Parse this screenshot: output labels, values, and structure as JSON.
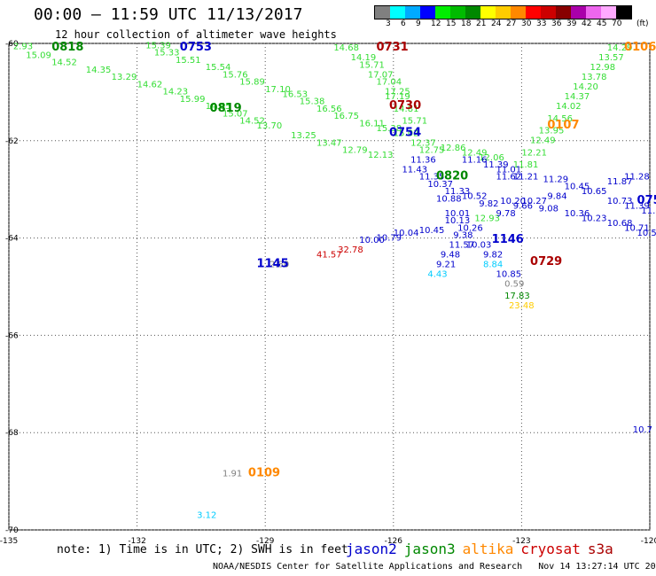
{
  "header": {
    "title": "00:00 — 11:59 UTC 11/13/2017",
    "subtitle": "12 hour collection of altimeter wave heights"
  },
  "colorbar": {
    "unit": "(ft)",
    "swatches": [
      {
        "color": "#808080",
        "label": "3"
      },
      {
        "color": "#00ffff",
        "label": "6"
      },
      {
        "color": "#00aaff",
        "label": "9"
      },
      {
        "color": "#0000ff",
        "label": "12"
      },
      {
        "color": "#00ee00",
        "label": "15"
      },
      {
        "color": "#00bb00",
        "label": "18"
      },
      {
        "color": "#008800",
        "label": "21"
      },
      {
        "color": "#ffff00",
        "label": "24"
      },
      {
        "color": "#ffcc00",
        "label": "27"
      },
      {
        "color": "#ff8800",
        "label": "30"
      },
      {
        "color": "#ff0000",
        "label": "33"
      },
      {
        "color": "#cc0000",
        "label": "36"
      },
      {
        "color": "#880000",
        "label": "39"
      },
      {
        "color": "#aa00aa",
        "label": "42"
      },
      {
        "color": "#ee66ee",
        "label": "45"
      },
      {
        "color": "#ffaaff",
        "label": "70"
      },
      {
        "color": "#000000",
        "label": ""
      }
    ]
  },
  "map": {
    "lon_min": -135,
    "lon_max": -120,
    "lat_min": -70,
    "lat_max": -60,
    "lon_ticks": [
      {
        "v": -135,
        "label": "-135"
      },
      {
        "v": -132,
        "label": "-132"
      },
      {
        "v": -129,
        "label": "-129"
      },
      {
        "v": -126,
        "label": "-126"
      },
      {
        "v": -123,
        "label": "-123"
      },
      {
        "v": -120,
        "label": "-120"
      }
    ],
    "lat_ticks": [
      {
        "v": -60,
        "label": "-60"
      },
      {
        "v": -62,
        "label": "-62"
      },
      {
        "v": -64,
        "label": "-64"
      },
      {
        "v": -66,
        "label": "-66"
      },
      {
        "v": -68,
        "label": "-68"
      },
      {
        "v": -70,
        "label": "-70"
      }
    ],
    "colors": {
      "jason2": "#0000cc",
      "jason3": "#008800",
      "altika": "#ff8800",
      "cryosat": "#cc0000",
      "s3a": "#aa0000",
      "green_light": "#33dd33",
      "gray": "#808080",
      "cyan": "#00ccff",
      "yellow": "#ffcc00"
    },
    "time_labels": [
      {
        "lon": -134.0,
        "lat": -60.15,
        "text": "0818",
        "sat": "jason3"
      },
      {
        "lon": -131.0,
        "lat": -60.15,
        "text": "0753",
        "sat": "jason2"
      },
      {
        "lon": -126.4,
        "lat": -60.15,
        "text": "0731",
        "sat": "s3a"
      },
      {
        "lon": -120.6,
        "lat": -60.15,
        "text": "0106",
        "sat": "altika"
      },
      {
        "lon": -126.1,
        "lat": -61.35,
        "text": "0730",
        "sat": "s3a"
      },
      {
        "lon": -130.3,
        "lat": -61.4,
        "text": "0819",
        "sat": "jason3"
      },
      {
        "lon": -126.1,
        "lat": -61.9,
        "text": "0754",
        "sat": "jason2"
      },
      {
        "lon": -122.4,
        "lat": -61.75,
        "text": "0107",
        "sat": "altika"
      },
      {
        "lon": -125.0,
        "lat": -62.8,
        "text": "0820",
        "sat": "jason3"
      },
      {
        "lon": -120.3,
        "lat": -63.3,
        "text": "075",
        "sat": "jason2"
      },
      {
        "lon": -123.7,
        "lat": -64.1,
        "text": "1146",
        "sat": "jason2"
      },
      {
        "lon": -129.2,
        "lat": -64.6,
        "text": "1145",
        "sat": "jason2"
      },
      {
        "lon": -122.8,
        "lat": -64.55,
        "text": "0729",
        "sat": "s3a"
      },
      {
        "lon": -129.4,
        "lat": -68.9,
        "text": "0109",
        "sat": "altika"
      }
    ],
    "swh_labels": [
      {
        "lon": -134.9,
        "lat": -60.12,
        "text": "2.93",
        "c": "green_light"
      },
      {
        "lon": -134.6,
        "lat": -60.3,
        "text": "15.09",
        "c": "green_light"
      },
      {
        "lon": -134.0,
        "lat": -60.45,
        "text": "14.52",
        "c": "green_light"
      },
      {
        "lon": -133.2,
        "lat": -60.6,
        "text": "14.35",
        "c": "green_light"
      },
      {
        "lon": -132.6,
        "lat": -60.75,
        "text": "13.29",
        "c": "green_light"
      },
      {
        "lon": -132.0,
        "lat": -60.9,
        "text": "14.62",
        "c": "green_light"
      },
      {
        "lon": -131.4,
        "lat": -61.05,
        "text": "14.23",
        "c": "green_light"
      },
      {
        "lon": -131.0,
        "lat": -61.2,
        "text": "15.99",
        "c": "green_light"
      },
      {
        "lon": -130.4,
        "lat": -61.35,
        "text": "14.65",
        "c": "green_light"
      },
      {
        "lon": -130.0,
        "lat": -61.5,
        "text": "15.07",
        "c": "green_light"
      },
      {
        "lon": -129.6,
        "lat": -61.65,
        "text": "14.52",
        "c": "green_light"
      },
      {
        "lon": -129.2,
        "lat": -61.75,
        "text": "13.70",
        "c": "green_light"
      },
      {
        "lon": -128.4,
        "lat": -61.95,
        "text": "13.25",
        "c": "green_light"
      },
      {
        "lon": -127.8,
        "lat": -62.1,
        "text": "13.47",
        "c": "green_light"
      },
      {
        "lon": -127.2,
        "lat": -62.25,
        "text": "12.79",
        "c": "green_light"
      },
      {
        "lon": -126.6,
        "lat": -62.35,
        "text": "12.13",
        "c": "green_light"
      },
      {
        "lon": -131.8,
        "lat": -60.1,
        "text": "15.39",
        "c": "green_light"
      },
      {
        "lon": -131.6,
        "lat": -60.25,
        "text": "15.33",
        "c": "green_light"
      },
      {
        "lon": -131.1,
        "lat": -60.4,
        "text": "15.51",
        "c": "green_light"
      },
      {
        "lon": -130.4,
        "lat": -60.55,
        "text": "15.54",
        "c": "green_light"
      },
      {
        "lon": -130.0,
        "lat": -60.7,
        "text": "15.76",
        "c": "green_light"
      },
      {
        "lon": -129.6,
        "lat": -60.85,
        "text": "15.89",
        "c": "green_light"
      },
      {
        "lon": -129.0,
        "lat": -61.0,
        "text": "17.10",
        "c": "green_light"
      },
      {
        "lon": -128.6,
        "lat": -61.1,
        "text": "16.53",
        "c": "green_light"
      },
      {
        "lon": -128.2,
        "lat": -61.25,
        "text": "15.38",
        "c": "green_light"
      },
      {
        "lon": -127.8,
        "lat": -61.4,
        "text": "16.56",
        "c": "green_light"
      },
      {
        "lon": -127.4,
        "lat": -61.55,
        "text": "16.75",
        "c": "green_light"
      },
      {
        "lon": -126.8,
        "lat": -61.7,
        "text": "16.11",
        "c": "green_light"
      },
      {
        "lon": -126.4,
        "lat": -61.8,
        "text": "15.38",
        "c": "green_light"
      },
      {
        "lon": -126.0,
        "lat": -61.9,
        "text": "15.02",
        "c": "green_light"
      },
      {
        "lon": -127.4,
        "lat": -60.15,
        "text": "14.68",
        "c": "green_light"
      },
      {
        "lon": -127.0,
        "lat": -60.35,
        "text": "14.19",
        "c": "green_light"
      },
      {
        "lon": -126.8,
        "lat": -60.5,
        "text": "15.71",
        "c": "green_light"
      },
      {
        "lon": -126.6,
        "lat": -60.7,
        "text": "17.07",
        "c": "green_light"
      },
      {
        "lon": -126.4,
        "lat": -60.85,
        "text": "17.04",
        "c": "green_light"
      },
      {
        "lon": -126.2,
        "lat": -61.05,
        "text": "17.25",
        "c": "green_light"
      },
      {
        "lon": -126.2,
        "lat": -61.15,
        "text": "17.19",
        "c": "green_light"
      },
      {
        "lon": -126.0,
        "lat": -61.4,
        "text": "14.81",
        "c": "green_light"
      },
      {
        "lon": -125.8,
        "lat": -61.65,
        "text": "15.71",
        "c": "green_light"
      },
      {
        "lon": -125.6,
        "lat": -62.1,
        "text": "12.37",
        "c": "green_light"
      },
      {
        "lon": -125.4,
        "lat": -62.25,
        "text": "12.75",
        "c": "green_light"
      },
      {
        "lon": -124.9,
        "lat": -62.2,
        "text": "12.86",
        "c": "green_light"
      },
      {
        "lon": -124.4,
        "lat": -62.3,
        "text": "12.49",
        "c": "green_light"
      },
      {
        "lon": -124.0,
        "lat": -62.4,
        "text": "12.06",
        "c": "green_light"
      },
      {
        "lon": -121.0,
        "lat": -60.15,
        "text": "14.29",
        "c": "green_light"
      },
      {
        "lon": -121.2,
        "lat": -60.35,
        "text": "13.57",
        "c": "green_light"
      },
      {
        "lon": -121.4,
        "lat": -60.55,
        "text": "12.98",
        "c": "green_light"
      },
      {
        "lon": -121.6,
        "lat": -60.75,
        "text": "13.78",
        "c": "green_light"
      },
      {
        "lon": -121.8,
        "lat": -60.95,
        "text": "14.20",
        "c": "green_light"
      },
      {
        "lon": -122.0,
        "lat": -61.15,
        "text": "14.37",
        "c": "green_light"
      },
      {
        "lon": -122.2,
        "lat": -61.35,
        "text": "14.02",
        "c": "green_light"
      },
      {
        "lon": -122.4,
        "lat": -61.6,
        "text": "14.56",
        "c": "green_light"
      },
      {
        "lon": -122.6,
        "lat": -61.85,
        "text": "13.95",
        "c": "green_light"
      },
      {
        "lon": -122.8,
        "lat": -62.05,
        "text": "12.49",
        "c": "green_light"
      },
      {
        "lon": -123.0,
        "lat": -62.3,
        "text": "12.21",
        "c": "green_light"
      },
      {
        "lon": -123.2,
        "lat": -62.55,
        "text": "11.81",
        "c": "green_light"
      },
      {
        "lon": -125.6,
        "lat": -62.45,
        "text": "11.36",
        "c": "jason2"
      },
      {
        "lon": -125.8,
        "lat": -62.65,
        "text": "11.43",
        "c": "jason2"
      },
      {
        "lon": -125.4,
        "lat": -62.8,
        "text": "11.35",
        "c": "jason2"
      },
      {
        "lon": -125.2,
        "lat": -62.95,
        "text": "10.37",
        "c": "jason2"
      },
      {
        "lon": -124.8,
        "lat": -63.1,
        "text": "11.33",
        "c": "jason2"
      },
      {
        "lon": -125.0,
        "lat": -63.25,
        "text": "10.88",
        "c": "jason2"
      },
      {
        "lon": -124.4,
        "lat": -63.2,
        "text": "10.52",
        "c": "jason2"
      },
      {
        "lon": -124.0,
        "lat": -63.35,
        "text": "9.82",
        "c": "jason2"
      },
      {
        "lon": -124.8,
        "lat": -63.55,
        "text": "10.01",
        "c": "jason2"
      },
      {
        "lon": -124.8,
        "lat": -63.7,
        "text": "10.13",
        "c": "jason2"
      },
      {
        "lon": -124.5,
        "lat": -63.85,
        "text": "10.26",
        "c": "jason2"
      },
      {
        "lon": -125.4,
        "lat": -63.9,
        "text": "10.45",
        "c": "jason2"
      },
      {
        "lon": -126.0,
        "lat": -63.95,
        "text": "10.04",
        "c": "jason2"
      },
      {
        "lon": -126.4,
        "lat": -64.05,
        "text": "10.79",
        "c": "jason2"
      },
      {
        "lon": -126.8,
        "lat": -64.1,
        "text": "10.00",
        "c": "jason2"
      },
      {
        "lon": -124.6,
        "lat": -64.0,
        "text": "9.38",
        "c": "jason2"
      },
      {
        "lon": -124.7,
        "lat": -64.2,
        "text": "11.57",
        "c": "jason2"
      },
      {
        "lon": -124.3,
        "lat": -64.2,
        "text": "10.03",
        "c": "jason2"
      },
      {
        "lon": -124.9,
        "lat": -64.4,
        "text": "9.48",
        "c": "jason2"
      },
      {
        "lon": -123.9,
        "lat": -64.4,
        "text": "9.82",
        "c": "jason2"
      },
      {
        "lon": -125.0,
        "lat": -64.6,
        "text": "9.21",
        "c": "jason2"
      },
      {
        "lon": -123.9,
        "lat": -64.6,
        "text": "8.84",
        "c": "cyan"
      },
      {
        "lon": -125.2,
        "lat": -64.8,
        "text": "4.43",
        "c": "cyan"
      },
      {
        "lon": -123.6,
        "lat": -64.8,
        "text": "10.85",
        "c": "jason2"
      },
      {
        "lon": -123.4,
        "lat": -65.0,
        "text": "0.59",
        "c": "gray"
      },
      {
        "lon": -123.4,
        "lat": -65.25,
        "text": "17.83",
        "c": "jason3"
      },
      {
        "lon": -123.3,
        "lat": -65.45,
        "text": "23.48",
        "c": "yellow"
      },
      {
        "lon": -124.4,
        "lat": -62.45,
        "text": "11.16",
        "c": "jason2"
      },
      {
        "lon": -123.9,
        "lat": -62.55,
        "text": "11.39",
        "c": "jason2"
      },
      {
        "lon": -123.6,
        "lat": -62.65,
        "text": "11.01",
        "c": "jason2"
      },
      {
        "lon": -123.2,
        "lat": -62.8,
        "text": "11.21",
        "c": "jason2"
      },
      {
        "lon": -123.6,
        "lat": -62.8,
        "text": "11.62",
        "c": "jason2"
      },
      {
        "lon": -122.5,
        "lat": -62.85,
        "text": "11.29",
        "c": "jason2"
      },
      {
        "lon": -122.0,
        "lat": -63.0,
        "text": "10.45",
        "c": "jason2"
      },
      {
        "lon": -121.6,
        "lat": -63.1,
        "text": "10.65",
        "c": "jason2"
      },
      {
        "lon": -121.0,
        "lat": -62.9,
        "text": "11.87",
        "c": "jason2"
      },
      {
        "lon": -120.6,
        "lat": -62.8,
        "text": "11.28",
        "c": "jason2"
      },
      {
        "lon": -122.4,
        "lat": -63.2,
        "text": "9.84",
        "c": "jason2"
      },
      {
        "lon": -123.0,
        "lat": -63.3,
        "text": "10.27",
        "c": "jason2"
      },
      {
        "lon": -123.5,
        "lat": -63.3,
        "text": "10.20",
        "c": "jason2"
      },
      {
        "lon": -123.2,
        "lat": -63.4,
        "text": "9.66",
        "c": "jason2"
      },
      {
        "lon": -122.6,
        "lat": -63.45,
        "text": "9.08",
        "c": "jason2"
      },
      {
        "lon": -122.0,
        "lat": -63.55,
        "text": "10.36",
        "c": "jason2"
      },
      {
        "lon": -121.6,
        "lat": -63.65,
        "text": "10.23",
        "c": "jason2"
      },
      {
        "lon": -121.0,
        "lat": -63.75,
        "text": "10.68",
        "c": "jason2"
      },
      {
        "lon": -120.6,
        "lat": -63.85,
        "text": "10.71",
        "c": "jason2"
      },
      {
        "lon": -120.3,
        "lat": -63.95,
        "text": "10.52",
        "c": "jason2"
      },
      {
        "lon": -121.0,
        "lat": -63.3,
        "text": "10.73",
        "c": "jason2"
      },
      {
        "lon": -120.6,
        "lat": -63.4,
        "text": "11.39",
        "c": "jason2"
      },
      {
        "lon": -120.2,
        "lat": -63.5,
        "text": "11.82",
        "c": "jason2"
      },
      {
        "lon": -124.1,
        "lat": -63.65,
        "text": "12.93",
        "c": "green_light"
      },
      {
        "lon": -123.6,
        "lat": -63.55,
        "text": "9.78",
        "c": "jason2"
      },
      {
        "lon": -128.9,
        "lat": -64.6,
        "text": "2.80",
        "c": "gray"
      },
      {
        "lon": -127.8,
        "lat": -64.4,
        "text": "41.57",
        "c": "cryosat"
      },
      {
        "lon": -127.3,
        "lat": -64.3,
        "text": "32.78",
        "c": "cryosat"
      },
      {
        "lon": -130.0,
        "lat": -68.9,
        "text": "1.91",
        "c": "gray"
      },
      {
        "lon": -130.6,
        "lat": -69.75,
        "text": "3.12",
        "c": "cyan"
      },
      {
        "lon": -120.4,
        "lat": -68.0,
        "text": "10.7",
        "c": "jason2"
      }
    ]
  },
  "footer": {
    "note": "note: 1) Time is in UTC; 2) SWH is in feet",
    "legend": [
      {
        "name": "jason2",
        "color": "#0000cc"
      },
      {
        "name": "jason3",
        "color": "#008800"
      },
      {
        "name": "altika",
        "color": "#ff8800"
      },
      {
        "name": "cryosat",
        "color": "#cc0000"
      },
      {
        "name": "s3a",
        "color": "#aa0000"
      }
    ],
    "credit": "NOAA/NESDIS Center for Satellite Applications and Research   Nov 14 13:27:14 UTC 2017"
  }
}
